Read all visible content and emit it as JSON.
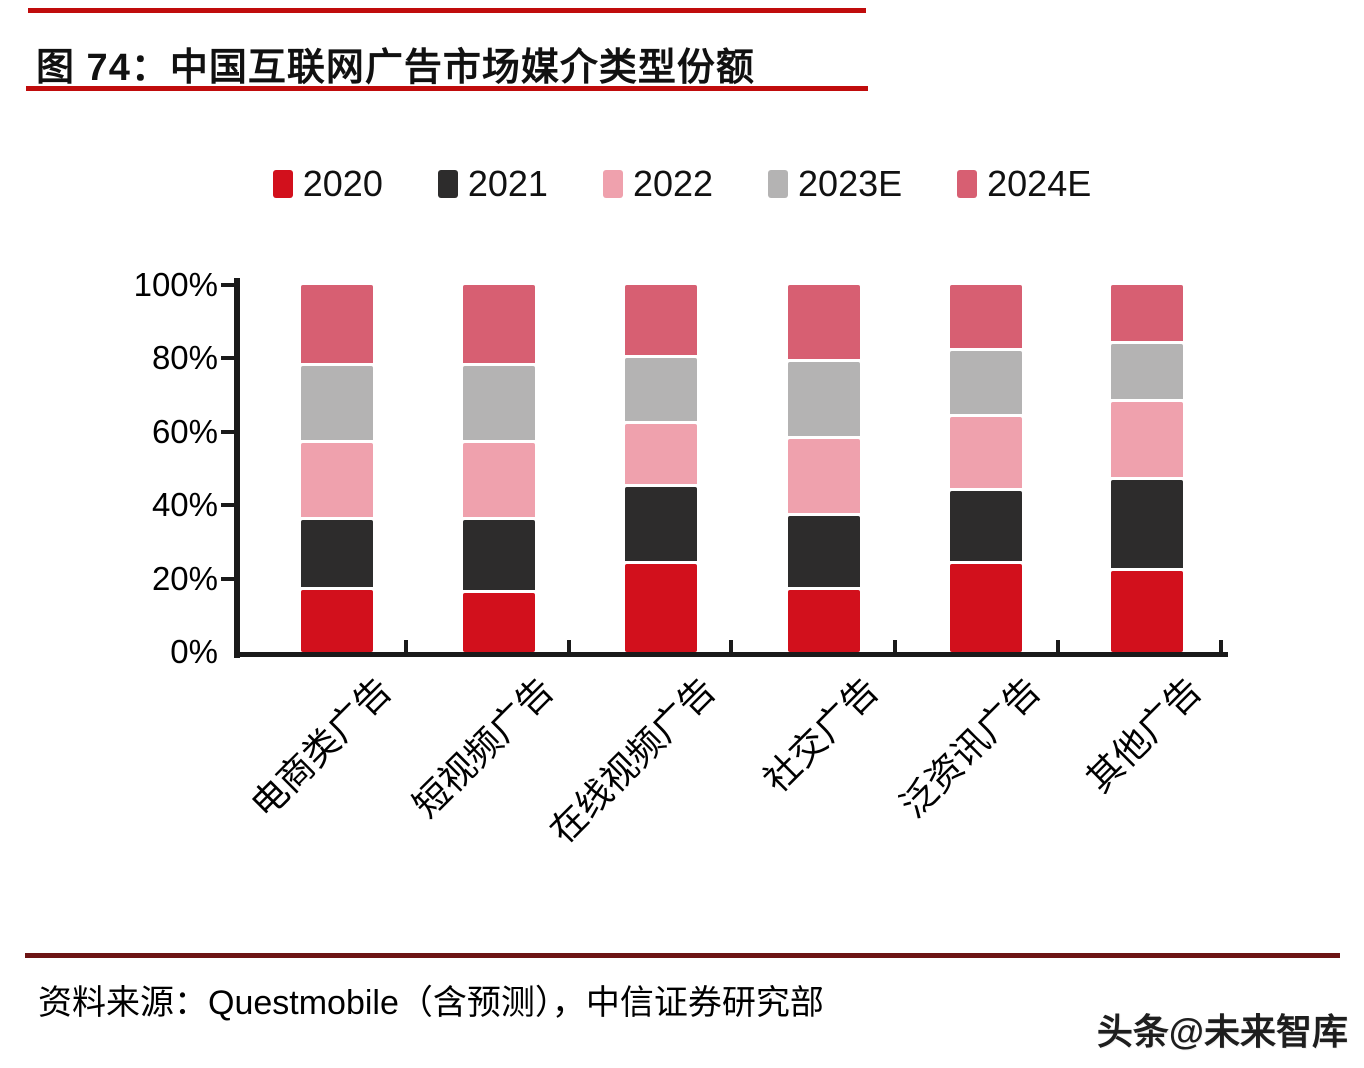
{
  "page": {
    "title": "图 74：中国互联网广告市场媒介类型份额",
    "source": "资料来源：Questmobile（含预测），中信证券研究部",
    "watermark": "头条@未来智库"
  },
  "colors": {
    "title_rule": "#c00c0c",
    "footer_rule": "#6d1414",
    "axis": "#1a1a1a",
    "background": "#ffffff",
    "text": "#000000"
  },
  "chart_data": {
    "type": "bar",
    "variant": "stacked-100",
    "title": "中国互联网广告市场媒介类型份额",
    "categories": [
      "电商类广告",
      "短视频广告",
      "在线视频广告",
      "社交广告",
      "泛资讯广告",
      "其他广告"
    ],
    "series": [
      {
        "name": "2020",
        "color": "#d2101c",
        "values": [
          17,
          16,
          24,
          17,
          24,
          22
        ]
      },
      {
        "name": "2021",
        "color": "#2d2c2c",
        "values": [
          19,
          20,
          21,
          20,
          20,
          25
        ]
      },
      {
        "name": "2022",
        "color": "#efa1ad",
        "values": [
          21,
          21,
          17,
          21,
          20,
          21
        ]
      },
      {
        "name": "2023E",
        "color": "#b4b3b3",
        "values": [
          21,
          21,
          18,
          21,
          18,
          16
        ]
      },
      {
        "name": "2024E",
        "color": "#d75f72",
        "values": [
          22,
          22,
          20,
          21,
          18,
          16
        ]
      }
    ],
    "stack_order": "bottom-to-top: 2020, 2021, 2022, 2023E, 2024E",
    "ylim": [
      0,
      100
    ],
    "yticks": [
      0,
      20,
      40,
      60,
      80,
      100
    ],
    "ytick_labels": [
      "0%",
      "20%",
      "40%",
      "60%",
      "80%",
      "100%"
    ],
    "ylabel": "",
    "xlabel": "",
    "grid": false,
    "legend_position": "top"
  }
}
